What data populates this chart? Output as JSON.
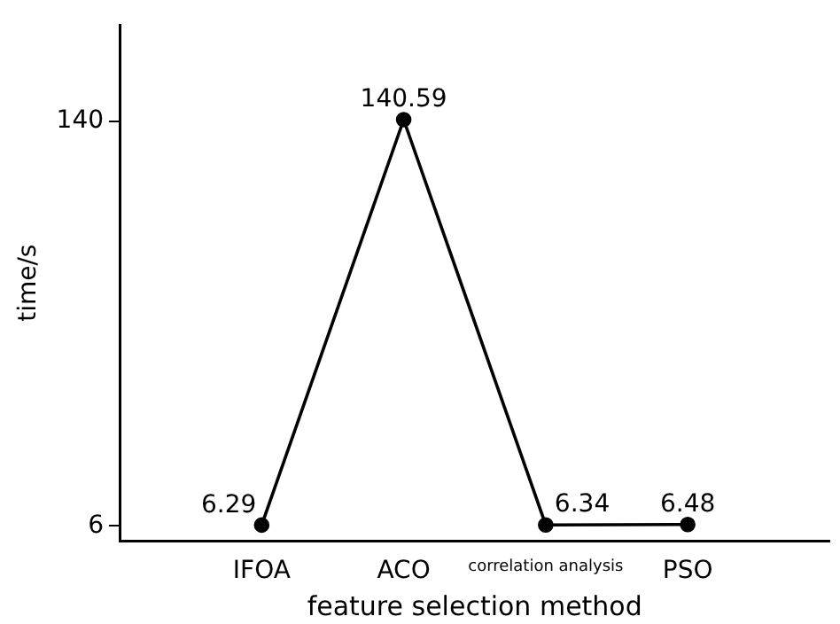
{
  "chart_data": {
    "type": "line",
    "xlabel": "feature selection method",
    "ylabel": "time/s",
    "categories": [
      "IFOA",
      "ACO",
      "correlation analysis",
      "PSO"
    ],
    "series": [
      {
        "color": "#000000",
        "values": [
          6.29,
          140.59,
          6.34,
          6.48
        ]
      }
    ],
    "ylim": [
      1,
      172
    ],
    "yticks": [
      6,
      140
    ],
    "grid": false,
    "legend": false,
    "marker": "circle",
    "line_style": "solid",
    "data_labels": true
  }
}
